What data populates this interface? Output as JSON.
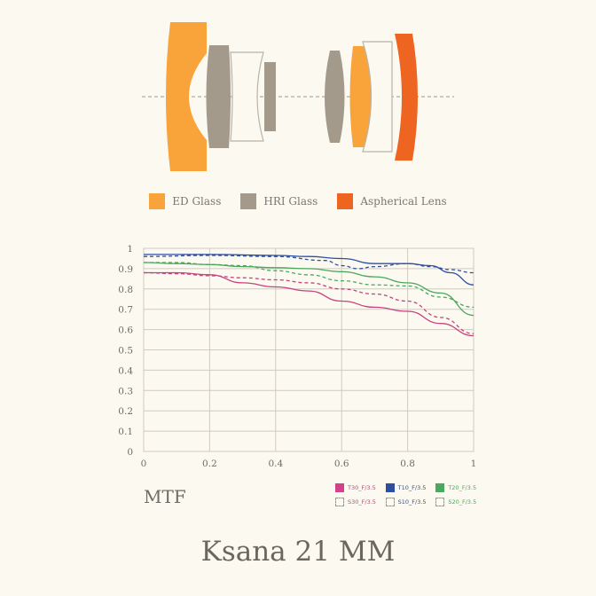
{
  "lens_legend": [
    {
      "label": "ED Glass",
      "color": "#f8a43a"
    },
    {
      "label": "HRI Glass",
      "color": "#a49a8b"
    },
    {
      "label": "Aspherical Lens",
      "color": "#ee6522"
    }
  ],
  "mtf_title": "MTF",
  "product_title": "Ksana 21 MM",
  "chart_data": {
    "type": "line",
    "title": "MTF",
    "xlabel": "",
    "ylabel": "",
    "xlim": [
      0,
      1
    ],
    "ylim": [
      0,
      1
    ],
    "x_ticks": [
      "0",
      "0.2",
      "0.4",
      "0.6",
      "0.8",
      "1"
    ],
    "y_ticks": [
      "0",
      "0.1",
      "0.2",
      "0.3",
      "0.4",
      "0.5",
      "0.6",
      "0.7",
      "0.8",
      "0.9",
      "1"
    ],
    "grid": true,
    "legend_position": "bottom-right",
    "series": [
      {
        "name": "T30_F/3.5",
        "color": "#c8417e",
        "dash": false,
        "points": [
          [
            0,
            0.88
          ],
          [
            0.1,
            0.88
          ],
          [
            0.2,
            0.87
          ],
          [
            0.3,
            0.83
          ],
          [
            0.4,
            0.81
          ],
          [
            0.5,
            0.79
          ],
          [
            0.6,
            0.74
          ],
          [
            0.7,
            0.71
          ],
          [
            0.8,
            0.69
          ],
          [
            0.9,
            0.63
          ],
          [
            1,
            0.57
          ]
        ]
      },
      {
        "name": "T10_F/3.5",
        "color": "#2e4fa0",
        "dash": false,
        "points": [
          [
            0,
            0.97
          ],
          [
            0.2,
            0.97
          ],
          [
            0.4,
            0.965
          ],
          [
            0.5,
            0.96
          ],
          [
            0.6,
            0.95
          ],
          [
            0.7,
            0.925
          ],
          [
            0.8,
            0.925
          ],
          [
            0.87,
            0.915
          ],
          [
            0.93,
            0.88
          ],
          [
            1,
            0.82
          ]
        ]
      },
      {
        "name": "T20_F/3.5",
        "color": "#4aa85e",
        "dash": false,
        "points": [
          [
            0,
            0.93
          ],
          [
            0.1,
            0.925
          ],
          [
            0.2,
            0.92
          ],
          [
            0.3,
            0.91
          ],
          [
            0.4,
            0.905
          ],
          [
            0.5,
            0.9
          ],
          [
            0.6,
            0.885
          ],
          [
            0.7,
            0.86
          ],
          [
            0.8,
            0.83
          ],
          [
            0.9,
            0.78
          ],
          [
            1,
            0.67
          ]
        ]
      },
      {
        "name": "S30_F/3.5",
        "color": "#c8417e",
        "dash": true,
        "points": [
          [
            0,
            0.88
          ],
          [
            0.1,
            0.875
          ],
          [
            0.2,
            0.865
          ],
          [
            0.3,
            0.855
          ],
          [
            0.4,
            0.845
          ],
          [
            0.5,
            0.83
          ],
          [
            0.6,
            0.8
          ],
          [
            0.7,
            0.775
          ],
          [
            0.8,
            0.74
          ],
          [
            0.9,
            0.66
          ],
          [
            1,
            0.58
          ]
        ]
      },
      {
        "name": "S10_F/3.5",
        "color": "#2e4fa0",
        "dash": true,
        "points": [
          [
            0,
            0.96
          ],
          [
            0.2,
            0.965
          ],
          [
            0.4,
            0.96
          ],
          [
            0.55,
            0.94
          ],
          [
            0.6,
            0.915
          ],
          [
            0.65,
            0.9
          ],
          [
            0.7,
            0.91
          ],
          [
            0.8,
            0.925
          ],
          [
            0.87,
            0.91
          ],
          [
            0.93,
            0.895
          ],
          [
            1,
            0.88
          ]
        ]
      },
      {
        "name": "S20_F/3.5",
        "color": "#4aa85e",
        "dash": true,
        "points": [
          [
            0,
            0.93
          ],
          [
            0.1,
            0.93
          ],
          [
            0.2,
            0.92
          ],
          [
            0.3,
            0.915
          ],
          [
            0.4,
            0.89
          ],
          [
            0.5,
            0.87
          ],
          [
            0.6,
            0.84
          ],
          [
            0.7,
            0.82
          ],
          [
            0.8,
            0.815
          ],
          [
            0.9,
            0.76
          ],
          [
            1,
            0.71
          ]
        ]
      }
    ]
  }
}
